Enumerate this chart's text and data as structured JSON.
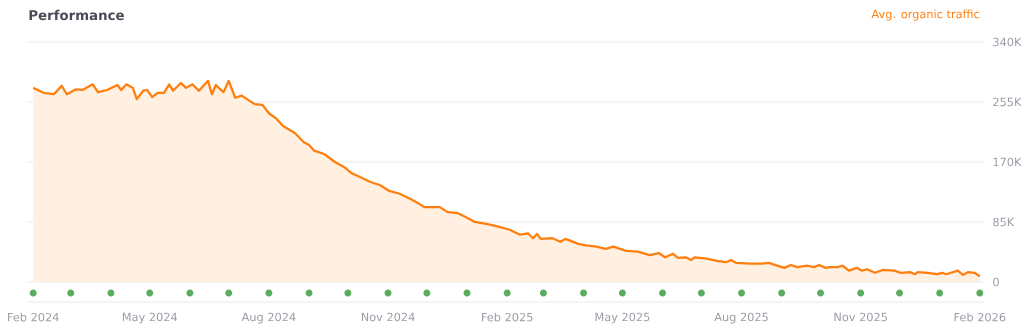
{
  "chart_data": {
    "type": "area",
    "title": "Performance",
    "grid": "y",
    "xlim": [
      "2024-01-28",
      "2026-02-05"
    ],
    "xticks": [
      {
        "value": "2024-02-01",
        "label": "Feb 2024"
      },
      {
        "value": "2024-05-01",
        "label": "May 2024"
      },
      {
        "value": "2024-08-01",
        "label": "Aug 2024"
      },
      {
        "value": "2024-11-01",
        "label": "Nov 2024"
      },
      {
        "value": "2025-02-01",
        "label": "Feb 2025"
      },
      {
        "value": "2025-05-01",
        "label": "May 2025"
      },
      {
        "value": "2025-08-01",
        "label": "Aug 2025"
      },
      {
        "value": "2025-11-01",
        "label": "Nov 2025"
      },
      {
        "value": "2026-02-01",
        "label": "Feb 2026"
      }
    ],
    "ylim": [
      0,
      340000
    ],
    "yticks": [
      0,
      {
        "value": 85000,
        "label": "85K"
      },
      {
        "value": 170000,
        "label": "170K"
      },
      {
        "value": 255000,
        "label": "255K"
      },
      {
        "value": 340000,
        "label": "340K"
      }
    ],
    "series": [
      {
        "name": "Avg. organic traffic",
        "color": "#ff7f0e",
        "x": [
          "2024-02-01",
          "2024-02-09",
          "2024-02-17",
          "2024-02-23",
          "2024-02-27",
          "2024-03-05",
          "2024-03-10",
          "2024-03-18",
          "2024-03-22",
          "2024-03-29",
          "2024-04-06",
          "2024-04-09",
          "2024-04-13",
          "2024-04-18",
          "2024-04-21",
          "2024-04-26",
          "2024-04-29",
          "2024-05-03",
          "2024-05-07",
          "2024-05-12",
          "2024-05-16",
          "2024-05-19",
          "2024-05-25",
          "2024-05-29",
          "2024-06-03",
          "2024-06-08",
          "2024-06-15",
          "2024-06-18",
          "2024-06-21",
          "2024-06-27",
          "2024-07-01",
          "2024-07-06",
          "2024-07-11",
          "2024-07-16",
          "2024-07-21",
          "2024-07-27",
          "2024-08-01",
          "2024-08-07",
          "2024-08-12",
          "2024-08-21",
          "2024-08-28",
          "2024-09-01",
          "2024-09-05",
          "2024-09-13",
          "2024-09-21",
          "2024-09-28",
          "2024-10-04",
          "2024-10-10",
          "2024-10-18",
          "2024-10-26",
          "2024-11-02",
          "2024-11-10",
          "2024-11-18",
          "2024-11-23",
          "2024-11-29",
          "2024-12-05",
          "2024-12-11",
          "2024-12-17",
          "2024-12-24",
          "2024-12-31",
          "2025-01-07",
          "2025-01-17",
          "2025-01-26",
          "2025-02-03",
          "2025-02-11",
          "2025-02-17",
          "2025-02-21",
          "2025-02-24",
          "2025-02-27",
          "2025-03-08",
          "2025-03-14",
          "2025-03-18",
          "2025-03-28",
          "2025-04-03",
          "2025-04-11",
          "2025-04-18",
          "2025-04-24",
          "2025-05-04",
          "2025-05-13",
          "2025-05-22",
          "2025-05-29",
          "2025-06-03",
          "2025-06-09",
          "2025-06-13",
          "2025-06-19",
          "2025-06-23",
          "2025-06-26",
          "2025-07-05",
          "2025-07-13",
          "2025-07-20",
          "2025-07-24",
          "2025-07-28",
          "2025-08-08",
          "2025-08-16",
          "2025-08-22",
          "2025-09-03",
          "2025-09-08",
          "2025-09-13",
          "2025-09-21",
          "2025-09-26",
          "2025-09-30",
          "2025-10-05",
          "2025-10-08",
          "2025-10-14",
          "2025-10-18",
          "2025-10-23",
          "2025-10-29",
          "2025-11-02",
          "2025-11-06",
          "2025-11-12",
          "2025-11-18",
          "2025-11-27",
          "2025-12-02",
          "2025-12-09",
          "2025-12-13",
          "2025-12-15",
          "2025-12-23",
          "2025-12-30",
          "2026-01-03",
          "2026-01-06",
          "2026-01-15",
          "2026-01-19",
          "2026-01-23",
          "2026-01-28",
          "2026-02-01"
        ],
        "values": [
          275000,
          268000,
          266000,
          278000,
          266000,
          273000,
          272000,
          280000,
          269000,
          272000,
          279000,
          272000,
          280000,
          275000,
          259000,
          271000,
          272000,
          262000,
          268000,
          268000,
          280000,
          271000,
          282000,
          275000,
          280000,
          271000,
          285000,
          266000,
          279000,
          269000,
          285000,
          261000,
          264000,
          258000,
          252000,
          251000,
          239000,
          231000,
          221000,
          211000,
          198000,
          194000,
          186000,
          181000,
          170000,
          163000,
          154000,
          149000,
          142000,
          137000,
          129000,
          125000,
          118000,
          113000,
          106000,
          106000,
          106000,
          99000,
          98000,
          92000,
          85000,
          82000,
          78000,
          74000,
          67000,
          69000,
          62000,
          68000,
          61000,
          62000,
          57000,
          61000,
          54000,
          52000,
          50000,
          47000,
          50000,
          44000,
          43000,
          38000,
          41000,
          35000,
          40000,
          34000,
          35000,
          31000,
          35000,
          33000,
          30000,
          28000,
          31000,
          27000,
          26000,
          26000,
          27000,
          20000,
          24000,
          21000,
          23000,
          21000,
          24000,
          20000,
          21000,
          21000,
          23000,
          16000,
          20000,
          16000,
          18000,
          13000,
          17000,
          16000,
          13000,
          14000,
          11000,
          14000,
          13000,
          11000,
          13000,
          11000,
          16000,
          10000,
          14000,
          13000,
          8000
        ]
      }
    ]
  }
}
